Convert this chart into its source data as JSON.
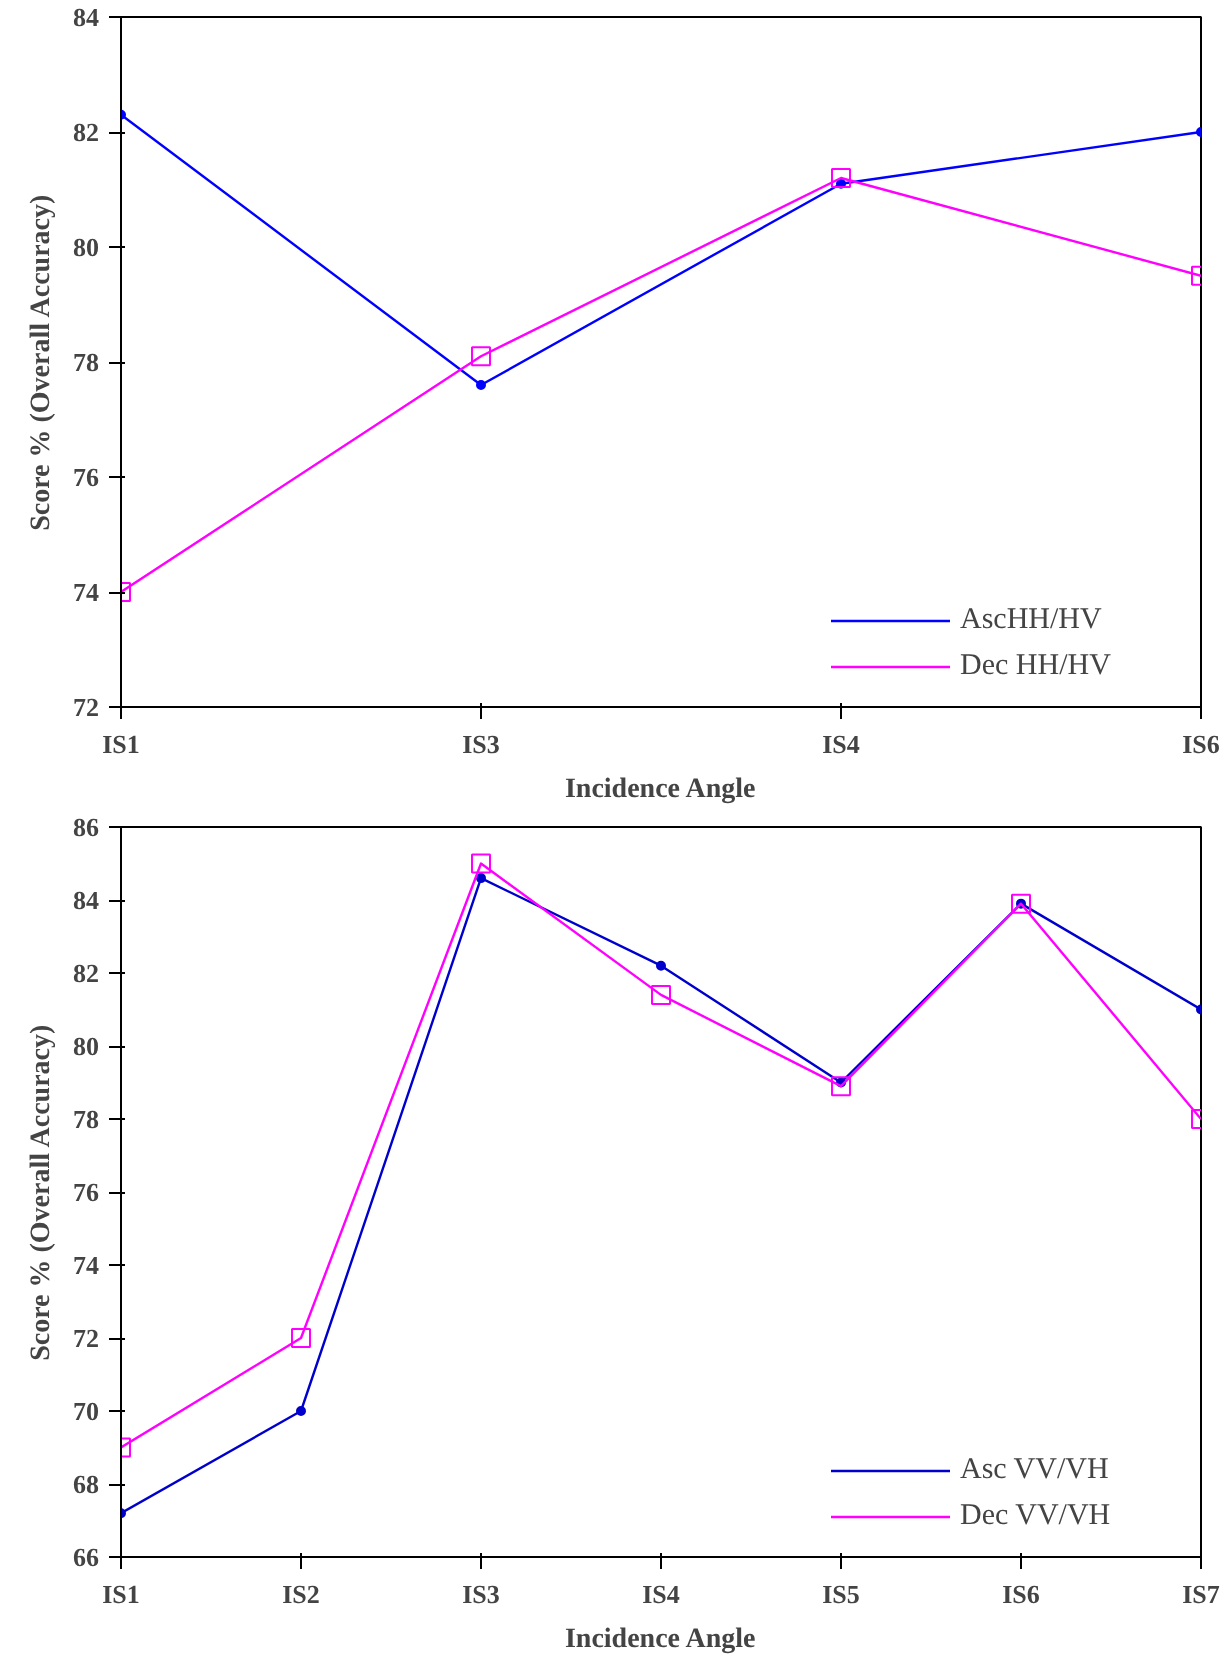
{
  "chart_data": [
    {
      "type": "line",
      "xlabel": "Incidence Angle",
      "ylabel": "Score % (Overall Accuracy)",
      "categories": [
        "IS1",
        "IS3",
        "IS4",
        "IS6"
      ],
      "ylim": [
        72,
        84
      ],
      "yticks": [
        72,
        74,
        76,
        78,
        80,
        82,
        84
      ],
      "grid": false,
      "legend": "bottom right",
      "series": [
        {
          "name": "AscHH/HV",
          "color": "#0000ff",
          "marker": "circle",
          "values": [
            82.3,
            77.6,
            81.1,
            82.0
          ]
        },
        {
          "name": "Dec HH/HV",
          "color": "#ff00ff",
          "marker": "square",
          "values": [
            74.0,
            78.1,
            81.2,
            79.5
          ]
        }
      ]
    },
    {
      "type": "line",
      "xlabel": "Incidence Angle",
      "ylabel": "Score % (Overall Accuracy)",
      "categories": [
        "IS1",
        "IS2",
        "IS3",
        "IS4",
        "IS5",
        "IS6",
        "IS7"
      ],
      "ylim": [
        66,
        86
      ],
      "yticks": [
        66,
        68,
        70,
        72,
        74,
        76,
        78,
        80,
        82,
        84,
        86
      ],
      "grid": false,
      "legend": "bottom right",
      "series": [
        {
          "name": "Asc VV/VH",
          "color": "#0000cc",
          "marker": "circle",
          "values": [
            67.2,
            70.0,
            84.6,
            82.2,
            79.0,
            83.9,
            81.0
          ]
        },
        {
          "name": "Dec VV/VH",
          "color": "#ff00ff",
          "marker": "square",
          "values": [
            69.0,
            72.0,
            85.0,
            81.4,
            78.9,
            83.9,
            78.0
          ]
        }
      ]
    }
  ]
}
